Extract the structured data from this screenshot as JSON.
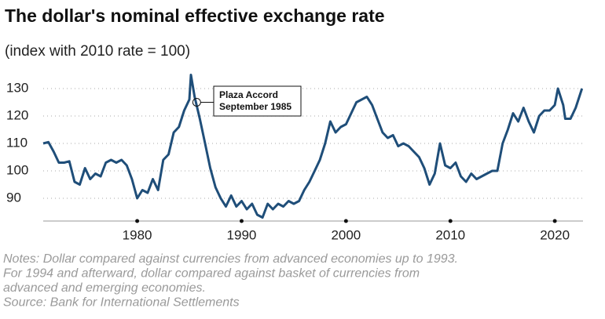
{
  "chart_data": {
    "type": "line",
    "title": "The dollar's nominal effective exchange rate",
    "subtitle": "(index with 2010 rate = 100)",
    "x": [
      1971.0,
      1971.5,
      1972,
      1972.5,
      1973,
      1973.5,
      1974,
      1974.5,
      1975,
      1975.5,
      1976,
      1976.5,
      1977,
      1977.5,
      1978,
      1978.5,
      1979,
      1979.5,
      1980,
      1980.5,
      1981,
      1981.5,
      1982,
      1982.5,
      1983,
      1983.5,
      1984,
      1984.5,
      1985,
      1985.15,
      1985.5,
      1986,
      1986.5,
      1987,
      1987.5,
      1988,
      1988.5,
      1989,
      1989.5,
      1990,
      1990.5,
      1991,
      1991.5,
      1992,
      1992.5,
      1993,
      1993.5,
      1994,
      1994.5,
      1995,
      1995.5,
      1996,
      1996.5,
      1997,
      1997.5,
      1998,
      1998.5,
      1999,
      1999.5,
      2000,
      2000.5,
      2001,
      2001.5,
      2002,
      2002.5,
      2003,
      2003.5,
      2004,
      2004.5,
      2005,
      2005.5,
      2006,
      2006.5,
      2007,
      2007.5,
      2008,
      2008.5,
      2009,
      2009.5,
      2010,
      2010.5,
      2011,
      2011.5,
      2012,
      2012.5,
      2013,
      2013.5,
      2014,
      2014.5,
      2015,
      2015.5,
      2016,
      2016.5,
      2017,
      2017.5,
      2018,
      2018.5,
      2019,
      2019.5,
      2020,
      2020.3,
      2020.8,
      2021,
      2021.5,
      2022,
      2022.6
    ],
    "series": [
      {
        "name": "Nominal effective exchange rate",
        "color": "#1f4e79",
        "values": [
          110,
          110.5,
          107,
          103,
          103,
          103.5,
          96,
          95,
          101,
          97,
          99,
          98,
          103,
          104,
          103,
          104,
          102,
          97,
          90,
          93,
          92,
          97,
          93,
          104,
          106,
          114,
          116,
          122,
          126,
          135,
          127,
          119,
          110,
          101,
          94,
          90,
          87,
          91,
          87,
          89,
          86,
          88,
          84,
          83,
          88,
          86,
          88,
          87,
          89,
          88,
          89,
          93,
          96,
          100,
          104,
          110,
          118,
          114,
          116,
          117,
          121,
          125,
          126,
          127,
          124,
          119,
          114,
          112,
          113,
          109,
          110,
          109,
          107,
          105,
          101,
          95,
          99,
          110,
          102,
          101,
          103,
          98,
          96,
          99,
          97,
          98,
          99,
          100,
          100,
          110,
          115,
          121,
          118,
          123,
          118,
          114,
          120,
          122,
          122,
          124,
          130,
          124,
          119,
          119,
          123,
          130
        ]
      }
    ],
    "xlim": [
      1971,
      2022.7
    ],
    "ylim": [
      82,
      136
    ],
    "xticks": [
      1980,
      1990,
      2000,
      2010,
      2020
    ],
    "yticks": [
      90,
      100,
      110,
      120,
      130
    ],
    "grid": true,
    "annotation": {
      "text": [
        "Plaza Accord",
        "September 1985"
      ],
      "x": 1985.7,
      "y": 125
    },
    "notes": [
      "Notes: Dollar compared against currencies from advanced economies up to 1993.",
      "For 1994 and afterward, dollar compared against basket of currencies from",
      "advanced and emerging economies.",
      "Source: Bank for International Settlements"
    ]
  }
}
